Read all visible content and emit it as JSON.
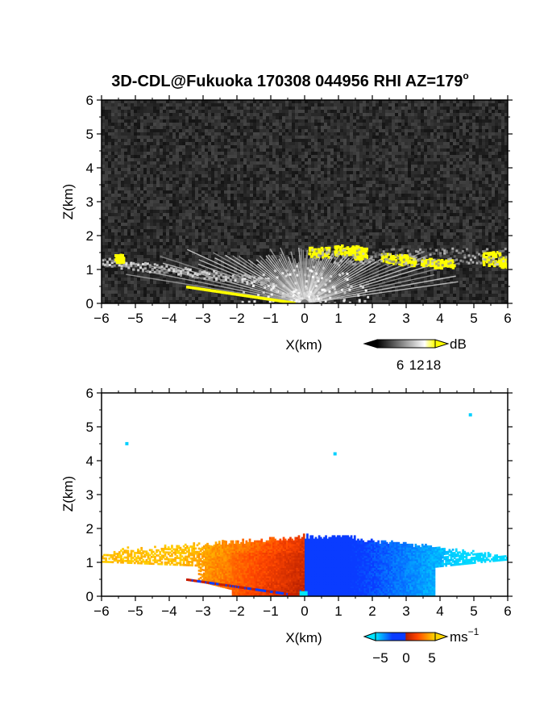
{
  "title": "3D-CDL@Fukuoka 170308 044956 RHI AZ=179",
  "title_degree": "o",
  "chart_data": [
    {
      "type": "heatmap",
      "name": "snr",
      "xlabel": "X(km)",
      "ylabel": "Z(km)",
      "xlim": [
        -6,
        6
      ],
      "ylim": [
        0,
        6
      ],
      "x_ticks": [
        -6,
        -5,
        -4,
        -3,
        -2,
        -1,
        0,
        1,
        2,
        3,
        4,
        5,
        6
      ],
      "y_ticks": [
        0,
        1,
        2,
        3,
        4,
        5,
        6
      ],
      "background": "noise (dark gray)",
      "colorbar": {
        "unit": "dB",
        "ticks": [
          6,
          12,
          18
        ],
        "range": [
          0,
          21
        ],
        "colors": [
          "#000000",
          "#ffffff",
          "#ffff00"
        ]
      },
      "features": [
        {
          "name": "fan of high SNR beams",
          "x_range": [
            -2.0,
            2.0
          ],
          "z_range": [
            0,
            1.6
          ]
        },
        {
          "name": "low cloud layer",
          "x_range": [
            -6,
            6
          ],
          "z_range": [
            1.0,
            1.8
          ]
        },
        {
          "name": "ground clutter strip",
          "x_range": [
            -3.5,
            -0.3
          ],
          "z_range": [
            0,
            0.5
          ]
        }
      ]
    },
    {
      "type": "heatmap",
      "name": "doppler_velocity",
      "xlabel": "X(km)",
      "ylabel": "Z(km)",
      "xlim": [
        -6,
        6
      ],
      "ylim": [
        0,
        6
      ],
      "x_ticks": [
        -6,
        -5,
        -4,
        -3,
        -2,
        -1,
        0,
        1,
        2,
        3,
        4,
        5,
        6
      ],
      "y_ticks": [
        0,
        1,
        2,
        3,
        4,
        5,
        6
      ],
      "colorbar": {
        "unit": "ms",
        "unit_exp": "−1",
        "ticks": [
          "−5",
          "0",
          "5"
        ],
        "range": [
          -7,
          7
        ],
        "colors": [
          "#00e5ff",
          "#0a3cff",
          "#b41e00",
          "#ff4600",
          "#ffd700"
        ]
      },
      "features": [
        {
          "name": "positive velocity region",
          "x_range": [
            -6,
            0
          ],
          "z_range": [
            0,
            1.7
          ],
          "velocity": "0 to 6"
        },
        {
          "name": "negative velocity region",
          "x_range": [
            0,
            6
          ],
          "z_range": [
            0,
            1.8
          ],
          "velocity": "-6 to 0"
        },
        {
          "name": "isolated points",
          "points": [
            [
              -5.3,
              4.55
            ],
            [
              0.85,
              4.25
            ],
            [
              4.85,
              5.4
            ]
          ]
        }
      ]
    }
  ]
}
